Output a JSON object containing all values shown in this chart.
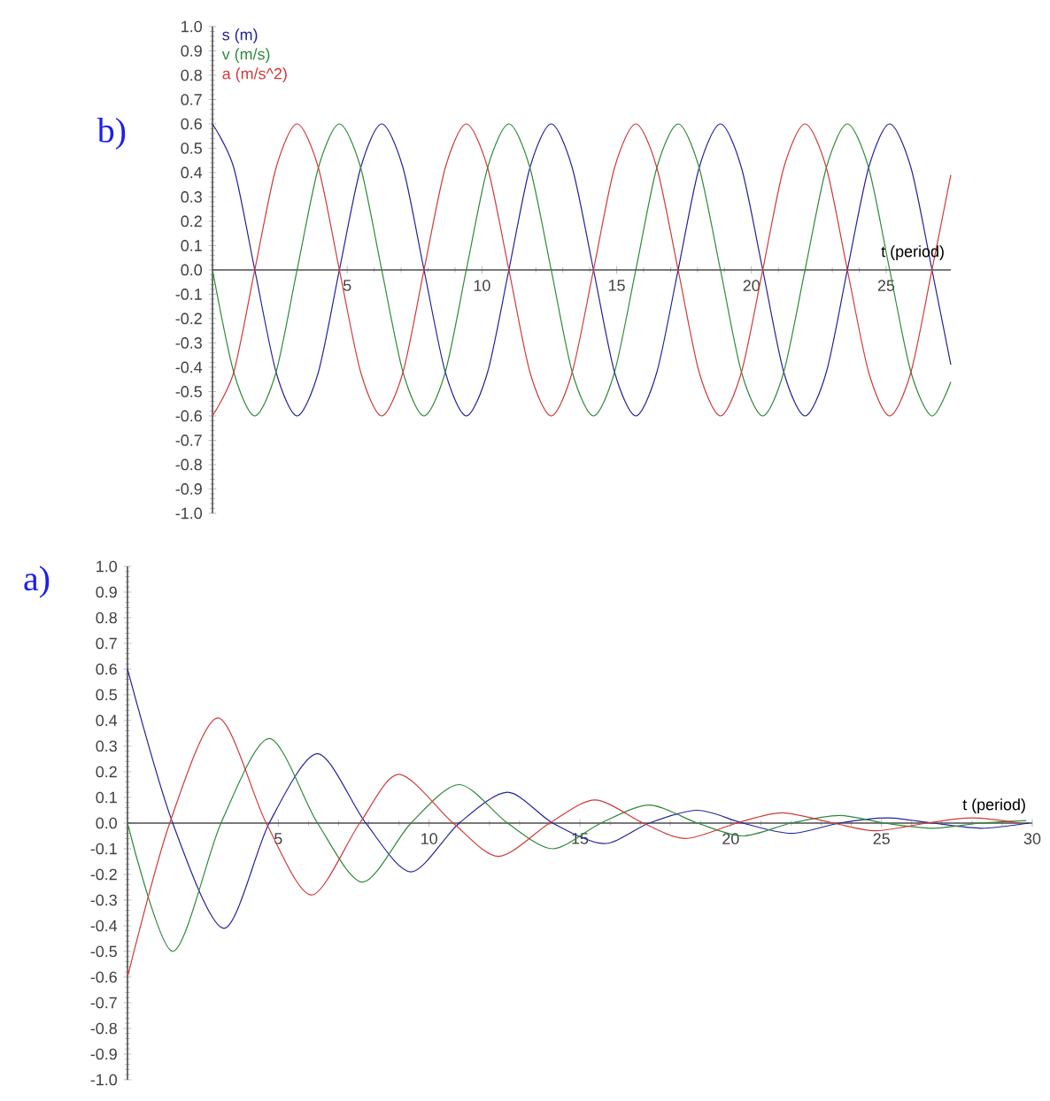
{
  "chart_data": [
    {
      "type": "line",
      "xlabel": "t (period)",
      "annotations": [
        "b)"
      ],
      "legend": "top left",
      "xlim": [
        0,
        27.4
      ],
      "ylim": [
        -1,
        1
      ],
      "xticks": [
        5,
        10,
        15,
        20,
        25
      ],
      "yticks": [
        {
          "value": 1,
          "label": "1.0"
        },
        0.9,
        0.8,
        0.7,
        0.6,
        0.5,
        0.4,
        0.3,
        0.2,
        0.1,
        {
          "value": 0,
          "label": "0.0"
        },
        -0.1,
        -0.2,
        -0.3,
        -0.4,
        -0.5,
        -0.6,
        -0.7,
        -0.8,
        -0.9,
        {
          "value": -1,
          "label": "-1.0"
        }
      ],
      "x": [
        0,
        0.79,
        1.57,
        2.36,
        3.14,
        3.93,
        4.71,
        5.5,
        6.28,
        7.07,
        7.85,
        8.64,
        9.42,
        10.21,
        11,
        11.78,
        12.57,
        13.35,
        14.14,
        14.92,
        15.71,
        16.49,
        17.28,
        18.06,
        18.85,
        19.63,
        20.42,
        21.2,
        21.99,
        22.78,
        23.56,
        24.35,
        25.13,
        25.92,
        26.7,
        27.4
      ],
      "series": [
        {
          "name": "s (m)",
          "color": "#23239b",
          "values": [
            0.6,
            0.42,
            0,
            -0.42,
            -0.6,
            -0.42,
            0,
            0.42,
            0.6,
            0.42,
            0,
            -0.42,
            -0.6,
            -0.42,
            0,
            0.42,
            0.6,
            0.42,
            0,
            -0.42,
            -0.6,
            -0.42,
            0,
            0.42,
            0.6,
            0.42,
            0,
            -0.42,
            -0.6,
            -0.42,
            0,
            0.42,
            0.6,
            0.42,
            0,
            -0.39
          ]
        },
        {
          "name": "v (m/s)",
          "color": "#2f8a3c",
          "values": [
            0,
            -0.42,
            -0.6,
            -0.42,
            0,
            0.42,
            0.6,
            0.42,
            0,
            -0.42,
            -0.6,
            -0.42,
            0,
            0.42,
            0.6,
            0.42,
            0,
            -0.42,
            -0.6,
            -0.42,
            0,
            0.42,
            0.6,
            0.42,
            0,
            -0.42,
            -0.6,
            -0.42,
            0,
            0.42,
            0.6,
            0.42,
            0,
            -0.42,
            -0.6,
            -0.46
          ]
        },
        {
          "name": "a (m/s^2)",
          "color": "#d03a3a",
          "values": [
            -0.6,
            -0.42,
            0,
            0.42,
            0.6,
            0.42,
            0,
            -0.42,
            -0.6,
            -0.42,
            0,
            0.42,
            0.6,
            0.42,
            0,
            -0.42,
            -0.6,
            -0.42,
            0,
            0.42,
            0.6,
            0.42,
            0,
            -0.42,
            -0.6,
            -0.42,
            0,
            0.42,
            0.6,
            0.42,
            0,
            -0.42,
            -0.6,
            -0.42,
            0,
            0.39
          ]
        }
      ]
    },
    {
      "type": "line",
      "xlabel": "t (period)",
      "annotations": [
        "a)"
      ],
      "xlim": [
        0,
        30
      ],
      "ylim": [
        -1,
        1
      ],
      "xticks": [
        5,
        10,
        15,
        20,
        25,
        30
      ],
      "yticks": [
        {
          "value": 1,
          "label": "1.0"
        },
        0.9,
        0.8,
        0.7,
        0.6,
        0.5,
        0.4,
        0.3,
        0.2,
        0.1,
        {
          "value": 0,
          "label": "0.0"
        },
        -0.1,
        -0.2,
        -0.3,
        -0.4,
        -0.5,
        -0.6,
        -0.7,
        -0.8,
        -0.9,
        {
          "value": -1,
          "label": "-1.0"
        }
      ],
      "series": [
        {
          "color": "#23239b",
          "x": [
            0,
            1.5,
            3.2,
            4.7,
            6.3,
            7.9,
            9.4,
            11,
            12.6,
            14.1,
            15.8,
            17.3,
            18.9,
            20.4,
            22,
            23.6,
            25.2,
            26.7,
            28.3,
            29.9
          ],
          "values": [
            0.6,
            0,
            -0.41,
            0,
            0.27,
            0,
            -0.19,
            0,
            0.12,
            0,
            -0.08,
            0,
            0.05,
            0,
            -0.04,
            0,
            0.02,
            0,
            -0.02,
            0
          ]
        },
        {
          "color": "#2f8a3c",
          "x": [
            0,
            1.5,
            3.1,
            4.7,
            6.3,
            7.8,
            9.4,
            11,
            12.6,
            14.1,
            15.7,
            17.3,
            18.9,
            20.4,
            22,
            23.6,
            25.1,
            26.7,
            28.3,
            29.8
          ],
          "values": [
            0,
            -0.5,
            0,
            0.33,
            0,
            -0.23,
            0,
            0.15,
            0,
            -0.1,
            0,
            0.07,
            0,
            -0.05,
            0,
            0.03,
            0,
            -0.02,
            0,
            0.01
          ]
        },
        {
          "color": "#d03a3a",
          "x": [
            0,
            1.4,
            3.0,
            4.6,
            6.1,
            7.7,
            9.0,
            10.8,
            12.3,
            14,
            15.5,
            17.1,
            18.5,
            20.2,
            21.7,
            23.4,
            24.8,
            26.5,
            28,
            29.6
          ],
          "values": [
            -0.6,
            0,
            0.41,
            0,
            -0.28,
            0,
            0.19,
            0,
            -0.13,
            0,
            0.09,
            0,
            -0.06,
            0,
            0.04,
            0,
            -0.03,
            0,
            0.02,
            0
          ]
        }
      ]
    }
  ]
}
